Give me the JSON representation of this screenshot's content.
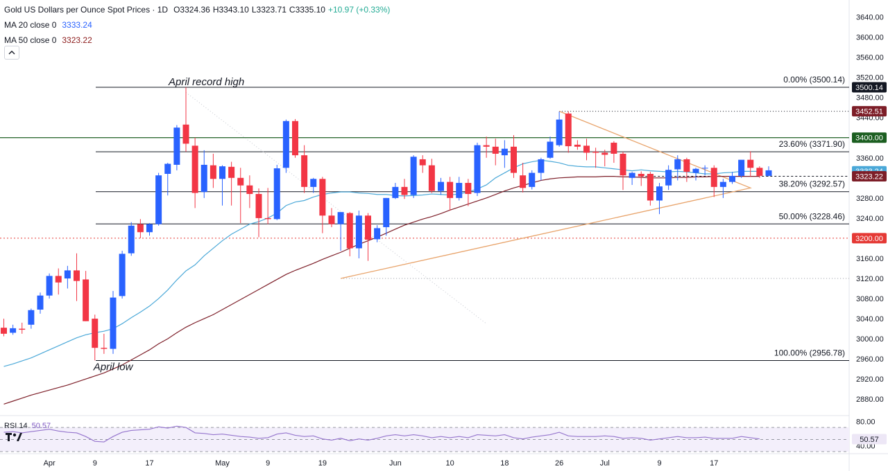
{
  "legend": {
    "title": "Gold US Dollars per Ounce Spot Prices · 1D",
    "open": "O3324.36",
    "high": "H3343.10",
    "low": "L3323.71",
    "close": "C3335.10",
    "change": "+10.97 (+0.33%)",
    "ma20_label": "MA 20 close 0",
    "ma20_value": "3333.24",
    "ma50_label": "MA 50 close 0",
    "ma50_value": "3323.22"
  },
  "rsi_legend": {
    "label": "RSI 14",
    "value": "50.57"
  },
  "colors": {
    "up": "#2962ff",
    "down": "#f23645",
    "ma20": "#4aa8d8",
    "ma50": "#7d1e28",
    "rsi": "#9575cd",
    "fib": "#131722",
    "green_level": "#1b5e20",
    "red_level": "#e53935",
    "triangle": "#e8a36a"
  },
  "chart_data": {
    "type": "candlestick",
    "title": "Gold US Dollars per Ounce Spot Prices · 1D",
    "ylim": [
      2850,
      3660
    ],
    "y_ticks": [
      2880,
      2920,
      2960,
      3000,
      3040,
      3080,
      3120,
      3160,
      3200,
      3240,
      3280,
      3320,
      3360,
      3400,
      3440,
      3480,
      3520,
      3560,
      3600,
      3640
    ],
    "x_labels": [
      {
        "label": "Apr",
        "index": 5
      },
      {
        "label": "9",
        "index": 10
      },
      {
        "label": "17",
        "index": 16
      },
      {
        "label": "May",
        "index": 24
      },
      {
        "label": "9",
        "index": 29
      },
      {
        "label": "19",
        "index": 35
      },
      {
        "label": "Jun",
        "index": 43
      },
      {
        "label": "10",
        "index": 49
      },
      {
        "label": "18",
        "index": 55
      },
      {
        "label": "26",
        "index": 61
      },
      {
        "label": "Jul",
        "index": 66
      },
      {
        "label": "9",
        "index": 72
      },
      {
        "label": "17",
        "index": 78
      }
    ],
    "candles": [
      {
        "o": 3022,
        "h": 3040,
        "l": 3005,
        "c": 3010
      },
      {
        "o": 3012,
        "h": 3028,
        "l": 3008,
        "c": 3021
      },
      {
        "o": 3020,
        "h": 3032,
        "l": 3010,
        "c": 3018
      },
      {
        "o": 3028,
        "h": 3060,
        "l": 3020,
        "c": 3057
      },
      {
        "o": 3058,
        "h": 3092,
        "l": 3050,
        "c": 3086
      },
      {
        "o": 3086,
        "h": 3130,
        "l": 3080,
        "c": 3125
      },
      {
        "o": 3125,
        "h": 3140,
        "l": 3088,
        "c": 3112
      },
      {
        "o": 3120,
        "h": 3145,
        "l": 3100,
        "c": 3136
      },
      {
        "o": 3136,
        "h": 3170,
        "l": 3075,
        "c": 3115
      },
      {
        "o": 3118,
        "h": 3135,
        "l": 3035,
        "c": 3035
      },
      {
        "o": 3040,
        "h": 3048,
        "l": 2957,
        "c": 2982
      },
      {
        "o": 2982,
        "h": 3010,
        "l": 2970,
        "c": 2980
      },
      {
        "o": 2980,
        "h": 3095,
        "l": 2970,
        "c": 3082
      },
      {
        "o": 3085,
        "h": 3175,
        "l": 3080,
        "c": 3169
      },
      {
        "o": 3170,
        "h": 3232,
        "l": 3165,
        "c": 3225
      },
      {
        "o": 3228,
        "h": 3238,
        "l": 3200,
        "c": 3212
      },
      {
        "o": 3212,
        "h": 3230,
        "l": 3205,
        "c": 3228
      },
      {
        "o": 3228,
        "h": 3330,
        "l": 3225,
        "c": 3325
      },
      {
        "o": 3328,
        "h": 3350,
        "l": 3285,
        "c": 3348
      },
      {
        "o": 3346,
        "h": 3425,
        "l": 3335,
        "c": 3420
      },
      {
        "o": 3426,
        "h": 3500,
        "l": 3372,
        "c": 3388
      },
      {
        "o": 3384,
        "h": 3400,
        "l": 3260,
        "c": 3290
      },
      {
        "o": 3292,
        "h": 3375,
        "l": 3280,
        "c": 3346
      },
      {
        "o": 3345,
        "h": 3368,
        "l": 3300,
        "c": 3318
      },
      {
        "o": 3318,
        "h": 3345,
        "l": 3265,
        "c": 3343
      },
      {
        "o": 3342,
        "h": 3352,
        "l": 3265,
        "c": 3320
      },
      {
        "o": 3320,
        "h": 3340,
        "l": 3230,
        "c": 3305
      },
      {
        "o": 3305,
        "h": 3325,
        "l": 3260,
        "c": 3288
      },
      {
        "o": 3288,
        "h": 3299,
        "l": 3202,
        "c": 3240
      },
      {
        "o": 3240,
        "h": 3300,
        "l": 3228,
        "c": 3238
      },
      {
        "o": 3238,
        "h": 3346,
        "l": 3236,
        "c": 3339
      },
      {
        "o": 3340,
        "h": 3436,
        "l": 3330,
        "c": 3433
      },
      {
        "o": 3433,
        "h": 3437,
        "l": 3360,
        "c": 3365
      },
      {
        "o": 3365,
        "h": 3385,
        "l": 3290,
        "c": 3302
      },
      {
        "o": 3302,
        "h": 3320,
        "l": 3290,
        "c": 3318
      },
      {
        "o": 3318,
        "h": 3322,
        "l": 3210,
        "c": 3245
      },
      {
        "o": 3245,
        "h": 3260,
        "l": 3222,
        "c": 3228
      },
      {
        "o": 3228,
        "h": 3252,
        "l": 3175,
        "c": 3252
      },
      {
        "o": 3250,
        "h": 3252,
        "l": 3164,
        "c": 3180
      },
      {
        "o": 3180,
        "h": 3255,
        "l": 3160,
        "c": 3245
      },
      {
        "o": 3245,
        "h": 3250,
        "l": 3155,
        "c": 3197
      },
      {
        "o": 3198,
        "h": 3226,
        "l": 3192,
        "c": 3220
      },
      {
        "o": 3222,
        "h": 3280,
        "l": 3205,
        "c": 3280
      },
      {
        "o": 3280,
        "h": 3310,
        "l": 3278,
        "c": 3302
      },
      {
        "o": 3302,
        "h": 3318,
        "l": 3278,
        "c": 3286
      },
      {
        "o": 3286,
        "h": 3365,
        "l": 3280,
        "c": 3362
      },
      {
        "o": 3357,
        "h": 3365,
        "l": 3330,
        "c": 3345
      },
      {
        "o": 3345,
        "h": 3358,
        "l": 3290,
        "c": 3294
      },
      {
        "o": 3294,
        "h": 3320,
        "l": 3286,
        "c": 3312
      },
      {
        "o": 3312,
        "h": 3322,
        "l": 3255,
        "c": 3280
      },
      {
        "o": 3280,
        "h": 3322,
        "l": 3275,
        "c": 3310
      },
      {
        "o": 3310,
        "h": 3318,
        "l": 3264,
        "c": 3288
      },
      {
        "o": 3290,
        "h": 3390,
        "l": 3284,
        "c": 3385
      },
      {
        "o": 3385,
        "h": 3402,
        "l": 3360,
        "c": 3382
      },
      {
        "o": 3382,
        "h": 3398,
        "l": 3345,
        "c": 3368
      },
      {
        "o": 3365,
        "h": 3395,
        "l": 3340,
        "c": 3378
      },
      {
        "o": 3382,
        "h": 3405,
        "l": 3320,
        "c": 3330
      },
      {
        "o": 3325,
        "h": 3350,
        "l": 3291,
        "c": 3300
      },
      {
        "o": 3302,
        "h": 3335,
        "l": 3297,
        "c": 3330
      },
      {
        "o": 3330,
        "h": 3360,
        "l": 3315,
        "c": 3357
      },
      {
        "o": 3360,
        "h": 3402,
        "l": 3358,
        "c": 3392
      },
      {
        "o": 3385,
        "h": 3452,
        "l": 3382,
        "c": 3436
      },
      {
        "o": 3448,
        "h": 3452,
        "l": 3370,
        "c": 3383
      },
      {
        "o": 3386,
        "h": 3395,
        "l": 3376,
        "c": 3382
      },
      {
        "o": 3384,
        "h": 3398,
        "l": 3355,
        "c": 3370
      },
      {
        "o": 3372,
        "h": 3380,
        "l": 3340,
        "c": 3370
      },
      {
        "o": 3370,
        "h": 3376,
        "l": 3343,
        "c": 3366
      },
      {
        "o": 3390,
        "h": 3393,
        "l": 3350,
        "c": 3368
      },
      {
        "o": 3368,
        "h": 3372,
        "l": 3296,
        "c": 3325
      },
      {
        "o": 3320,
        "h": 3332,
        "l": 3306,
        "c": 3330
      },
      {
        "o": 3328,
        "h": 3333,
        "l": 3304,
        "c": 3323
      },
      {
        "o": 3328,
        "h": 3332,
        "l": 3265,
        "c": 3275
      },
      {
        "o": 3275,
        "h": 3310,
        "l": 3248,
        "c": 3303
      },
      {
        "o": 3305,
        "h": 3345,
        "l": 3296,
        "c": 3336
      },
      {
        "o": 3337,
        "h": 3365,
        "l": 3315,
        "c": 3357
      },
      {
        "o": 3357,
        "h": 3360,
        "l": 3312,
        "c": 3332
      },
      {
        "o": 3330,
        "h": 3340,
        "l": 3315,
        "c": 3338
      },
      {
        "o": 3340,
        "h": 3345,
        "l": 3325,
        "c": 3340
      },
      {
        "o": 3340,
        "h": 3345,
        "l": 3282,
        "c": 3302
      },
      {
        "o": 3302,
        "h": 3318,
        "l": 3280,
        "c": 3312
      },
      {
        "o": 3312,
        "h": 3332,
        "l": 3308,
        "c": 3324
      },
      {
        "o": 3324,
        "h": 3352,
        "l": 3320,
        "c": 3356
      },
      {
        "o": 3356,
        "h": 3373,
        "l": 3322,
        "c": 3340
      },
      {
        "o": 3340,
        "h": 3343,
        "l": 3320,
        "c": 3324
      },
      {
        "o": 3324,
        "h": 3343,
        "l": 3323,
        "c": 3335
      }
    ],
    "ma20": [
      2945,
      2950,
      2956,
      2962,
      2970,
      2978,
      2986,
      2994,
      3002,
      3008,
      3012,
      3015,
      3020,
      3030,
      3042,
      3053,
      3065,
      3080,
      3097,
      3117,
      3135,
      3147,
      3165,
      3180,
      3195,
      3208,
      3218,
      3228,
      3233,
      3240,
      3250,
      3265,
      3272,
      3275,
      3282,
      3287,
      3290,
      3292,
      3292,
      3290,
      3289,
      3287,
      3287,
      3285,
      3284,
      3285,
      3286,
      3288,
      3287,
      3286,
      3288,
      3292,
      3298,
      3306,
      3320,
      3330,
      3340,
      3348,
      3352,
      3355,
      3353,
      3350,
      3345,
      3343,
      3342,
      3342,
      3340,
      3338,
      3336,
      3334,
      3336,
      3334,
      3333,
      3332,
      3333,
      3332,
      3330,
      3328,
      3328,
      3330,
      3331,
      3333,
      3333,
      3333
    ],
    "ma50": [
      2870,
      2876,
      2882,
      2888,
      2893,
      2898,
      2903,
      2908,
      2914,
      2920,
      2926,
      2932,
      2940,
      2948,
      2958,
      2968,
      2978,
      2990,
      3000,
      3012,
      3023,
      3032,
      3040,
      3048,
      3058,
      3068,
      3078,
      3088,
      3098,
      3108,
      3118,
      3128,
      3136,
      3143,
      3150,
      3158,
      3165,
      3172,
      3180,
      3188,
      3195,
      3202,
      3210,
      3218,
      3226,
      3232,
      3238,
      3243,
      3249,
      3256,
      3262,
      3268,
      3274,
      3280,
      3287,
      3294,
      3300,
      3305,
      3310,
      3315,
      3318,
      3320,
      3321,
      3322,
      3322,
      3322,
      3323,
      3323,
      3322,
      3322,
      3321,
      3320,
      3320,
      3320,
      3321,
      3321,
      3322,
      3322,
      3323,
      3323,
      3323,
      3323,
      3323,
      3323
    ],
    "fib_levels": [
      {
        "label": "0.00% (3500.14)",
        "value": 3500.14
      },
      {
        "label": "23.60% (3371.90)",
        "value": 3371.9
      },
      {
        "label": "38.20% (3292.57)",
        "value": 3292.57
      },
      {
        "label": "50.00% (3228.46)",
        "value": 3228.46
      },
      {
        "label": "100.00% (2956.78)",
        "value": 2956.78
      }
    ],
    "levels": [
      {
        "value": 3400.0,
        "label": "3400.00",
        "style": "green"
      },
      {
        "value": 3200.0,
        "label": "3200.00",
        "style": "red-dotted"
      },
      {
        "value": 3452.51,
        "label": "3452.51",
        "style": "dotted"
      }
    ],
    "price_tags": [
      {
        "value": 3500.14,
        "label": "3500.14",
        "bg": "#131722"
      },
      {
        "value": 3452.51,
        "label": "3452.51",
        "bg": "#7d1e28"
      },
      {
        "value": 3400.0,
        "label": "3400.00",
        "bg": "#1b5e20"
      },
      {
        "value": 3333.24,
        "label": "3333.24",
        "bg": "#4aa8d8"
      },
      {
        "value": 3323.22,
        "label": "3323.22",
        "bg": "#7d1e28"
      },
      {
        "value": 3200.0,
        "label": "3200.00",
        "bg": "#e53935"
      }
    ],
    "annotations": [
      {
        "text": "April record high",
        "index": 20,
        "value": 3500.14,
        "position": "above"
      },
      {
        "text": "April low",
        "index": 10,
        "value": 2956.78,
        "position": "below"
      }
    ],
    "rsi": {
      "label": "RSI 14",
      "value": 50.57,
      "ylim": [
        30,
        85
      ],
      "ticks": [
        40,
        80
      ],
      "bands": [
        70,
        50,
        30
      ],
      "values": [
        62,
        63,
        61,
        63,
        65,
        67,
        64,
        62,
        61,
        55,
        47,
        46,
        55,
        62,
        65,
        66,
        67,
        71,
        69,
        72,
        70,
        61,
        60,
        58,
        59,
        57,
        55,
        54,
        52,
        53,
        59,
        61,
        57,
        55,
        56,
        51,
        49,
        52,
        48,
        51,
        49,
        52,
        56,
        58,
        56,
        58,
        56,
        53,
        55,
        53,
        55,
        53,
        58,
        57,
        56,
        58,
        53,
        51,
        54,
        56,
        58,
        62,
        56,
        55,
        55,
        55,
        56,
        55,
        52,
        53,
        52,
        49,
        51,
        53,
        55,
        53,
        53,
        54,
        52,
        52,
        52,
        55,
        53,
        51
      ]
    }
  }
}
